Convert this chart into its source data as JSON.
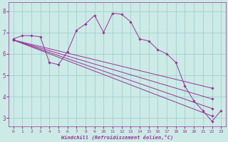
{
  "xlabel": "Windchill (Refroidissement éolien,°C)",
  "bg_color": "#cceae6",
  "grid_color": "#99cccc",
  "line_color": "#993399",
  "xmin": -0.5,
  "xmax": 23.5,
  "ymin": 2.6,
  "ymax": 8.4,
  "yticks": [
    3,
    4,
    5,
    6,
    7,
    8
  ],
  "xticks": [
    0,
    1,
    2,
    3,
    4,
    5,
    6,
    7,
    8,
    9,
    10,
    11,
    12,
    13,
    14,
    15,
    16,
    17,
    18,
    19,
    20,
    21,
    22,
    23
  ],
  "line1": [
    6.7,
    6.85,
    6.85,
    6.8,
    5.6,
    5.5,
    6.1,
    7.1,
    7.4,
    7.8,
    7.0,
    7.9,
    7.85,
    7.5,
    6.7,
    6.6,
    6.2,
    6.0,
    5.6,
    4.5,
    3.8,
    3.35,
    2.85,
    3.35
  ],
  "line2_x": [
    0,
    22
  ],
  "line2_y": [
    6.65,
    4.4
  ],
  "line3_x": [
    0,
    22
  ],
  "line3_y": [
    6.65,
    3.9
  ],
  "line4_x": [
    0,
    22
  ],
  "line4_y": [
    6.65,
    3.45
  ],
  "line5_x": [
    0,
    22
  ],
  "line5_y": [
    6.65,
    3.1
  ]
}
